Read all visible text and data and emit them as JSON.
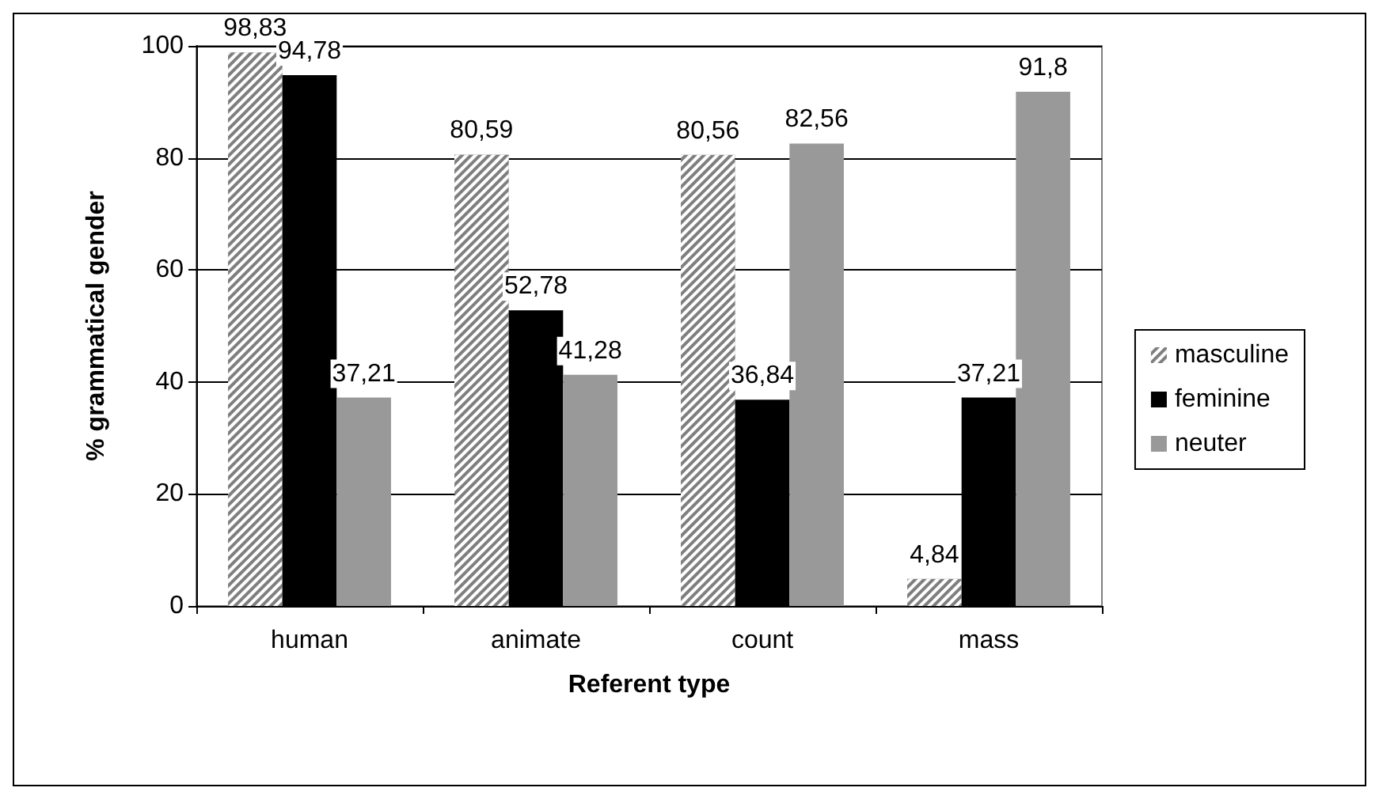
{
  "chart_data": {
    "type": "bar",
    "xlabel": "Referent type",
    "ylabel": "% grammatical gender",
    "categories": [
      "human",
      "animate",
      "count",
      "mass"
    ],
    "series": [
      {
        "name": "masculine",
        "color": "#7f7f7f",
        "values": [
          98.83,
          80.59,
          80.56,
          4.84
        ],
        "value_labels": [
          "98,83",
          "80,59",
          "80,56",
          "4,84"
        ]
      },
      {
        "name": "feminine",
        "color": "#000000",
        "values": [
          94.78,
          52.78,
          36.84,
          37.21
        ],
        "value_labels": [
          "94,78",
          "52,78",
          "36,84",
          "37,21"
        ]
      },
      {
        "name": "neuter",
        "color": "#999999",
        "values": [
          37.21,
          41.28,
          82.56,
          91.8
        ],
        "value_labels": [
          "37,21",
          "41,28",
          "82,56",
          "91,8"
        ]
      }
    ],
    "ylim": [
      0,
      100
    ],
    "yticks": [
      0,
      20,
      40,
      60,
      80,
      100
    ],
    "grid": "y",
    "legend": "right"
  }
}
